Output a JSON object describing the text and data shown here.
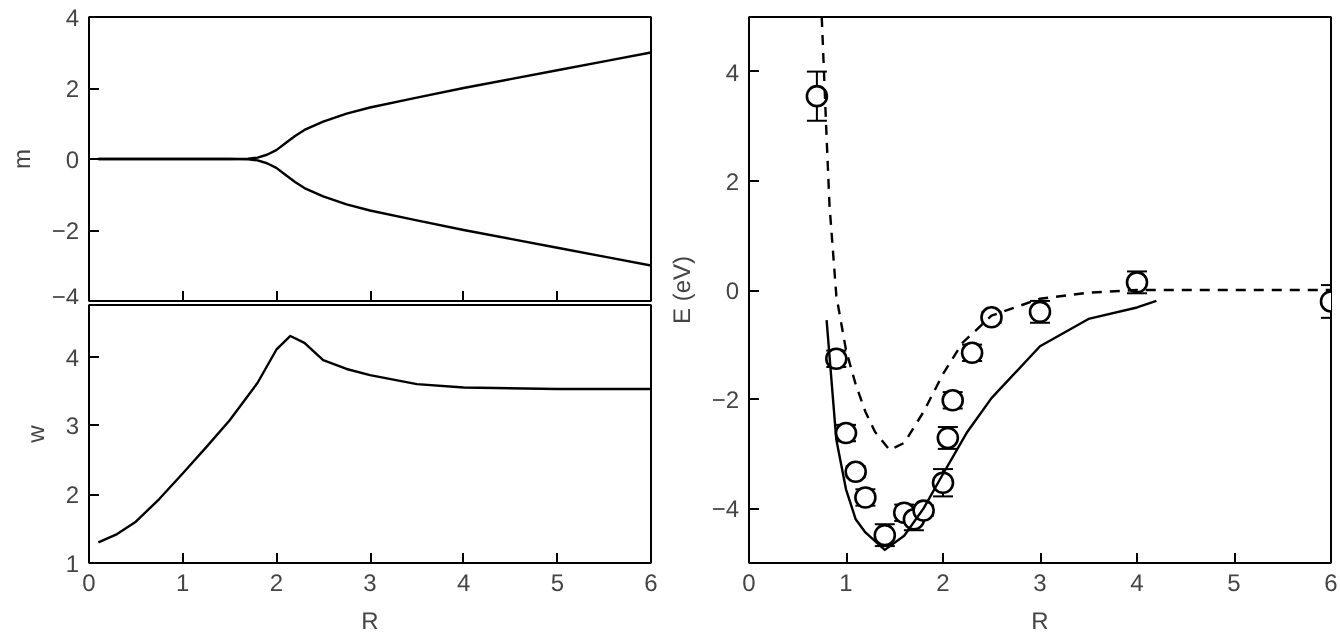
{
  "chart_data": [
    {
      "type": "line",
      "ylabel": "m",
      "xlim": [
        0,
        6
      ],
      "ylim": [
        -4,
        4
      ],
      "xticks": [
        0,
        1,
        2,
        3,
        4,
        5,
        6
      ],
      "yticks": [
        -4,
        -2,
        0,
        2,
        4
      ],
      "tick_labels": "y",
      "grid": false,
      "marker": "none",
      "line_style": "solid",
      "series": [
        {
          "color": "#000000",
          "x": [
            0.1,
            1.5,
            1.7,
            1.8,
            1.9,
            2.0,
            2.1,
            2.2,
            2.3,
            2.5,
            2.75,
            3.0,
            3.5,
            4.0,
            4.5,
            5.0,
            5.5,
            6.0
          ],
          "values": [
            0,
            0,
            0.01,
            0.04,
            0.12,
            0.25,
            0.45,
            0.65,
            0.82,
            1.05,
            1.28,
            1.45,
            1.73,
            2.0,
            2.25,
            2.5,
            2.75,
            3.0
          ]
        },
        {
          "color": "#000000",
          "x": [
            0.1,
            1.5,
            1.7,
            1.8,
            1.9,
            2.0,
            2.1,
            2.2,
            2.3,
            2.5,
            2.75,
            3.0,
            3.5,
            4.0,
            4.5,
            5.0,
            5.5,
            6.0
          ],
          "values": [
            0,
            0,
            -0.01,
            -0.04,
            -0.12,
            -0.25,
            -0.45,
            -0.65,
            -0.82,
            -1.05,
            -1.28,
            -1.45,
            -1.73,
            -2.0,
            -2.25,
            -2.5,
            -2.75,
            -3.0
          ]
        }
      ]
    },
    {
      "type": "line",
      "xlabel": "R",
      "ylabel": "w",
      "xlim": [
        0,
        6
      ],
      "ylim": [
        1,
        4.75
      ],
      "xticks": [
        0,
        1,
        2,
        3,
        4,
        5,
        6
      ],
      "yticks": [
        1,
        2,
        3,
        4
      ],
      "grid": false,
      "marker": "none",
      "line_style": "solid",
      "series": [
        {
          "color": "#000000",
          "x": [
            0.1,
            0.3,
            0.5,
            0.75,
            1.0,
            1.25,
            1.5,
            1.8,
            2.0,
            2.15,
            2.3,
            2.5,
            2.75,
            3.0,
            3.5,
            4.0,
            5.0,
            6.0
          ],
          "values": [
            1.3,
            1.42,
            1.6,
            1.93,
            2.3,
            2.68,
            3.07,
            3.62,
            4.1,
            4.3,
            4.2,
            3.95,
            3.82,
            3.73,
            3.6,
            3.55,
            3.53,
            3.53
          ]
        }
      ]
    },
    {
      "type": "line",
      "xlabel": "R",
      "ylabel": "E (eV)",
      "xlim": [
        0,
        6
      ],
      "ylim": [
        -5,
        5
      ],
      "xticks": [
        0,
        1,
        2,
        3,
        4,
        5,
        6
      ],
      "yticks": [
        -4,
        -2,
        0,
        2,
        4
      ],
      "grid": false,
      "series": [
        {
          "type": "scatter",
          "marker": "circle",
          "color": "#000000",
          "x": [
            0.7,
            0.9,
            1.0,
            1.1,
            1.2,
            1.4,
            1.6,
            1.7,
            1.8,
            2.0,
            2.05,
            2.1,
            2.3,
            2.5,
            3.0,
            4.0,
            6.0
          ],
          "values": [
            3.55,
            -1.26,
            -2.62,
            -3.33,
            -3.8,
            -4.49,
            -4.08,
            -4.2,
            -4.04,
            -3.53,
            -2.71,
            -2.02,
            -1.15,
            -0.5,
            -0.4,
            0.14,
            -0.21
          ],
          "errors": [
            0.45,
            0.15,
            0.15,
            0.1,
            0.15,
            0.2,
            0.15,
            0.2,
            0.1,
            0.25,
            0.2,
            0.15,
            0.15,
            0.1,
            0.2,
            0.2,
            0.3
          ]
        },
        {
          "type": "line",
          "line_style": "dashed",
          "marker": "none",
          "color": "#000000",
          "x": [
            0.75,
            0.8,
            0.83,
            0.9,
            1.0,
            1.1,
            1.2,
            1.3,
            1.45,
            1.6,
            1.8,
            2.0,
            2.2,
            2.5,
            3.0,
            3.5,
            4.0,
            6.0
          ],
          "values": [
            5.0,
            2.8,
            1.55,
            -0.1,
            -1.1,
            -1.73,
            -2.23,
            -2.6,
            -2.93,
            -2.8,
            -2.23,
            -1.54,
            -0.97,
            -0.47,
            -0.16,
            -0.05,
            0,
            0
          ]
        },
        {
          "type": "line",
          "line_style": "solid",
          "marker": "none",
          "color": "#000000",
          "x": [
            0.8,
            0.9,
            1.0,
            1.1,
            1.2,
            1.4,
            1.6,
            1.8,
            2.0,
            2.25,
            2.5,
            3.0,
            3.5,
            4.0,
            4.2
          ],
          "values": [
            -0.55,
            -2.74,
            -3.65,
            -4.2,
            -4.44,
            -4.76,
            -4.5,
            -4.0,
            -3.37,
            -2.6,
            -1.98,
            -1.03,
            -0.53,
            -0.32,
            -0.2
          ]
        }
      ]
    }
  ]
}
